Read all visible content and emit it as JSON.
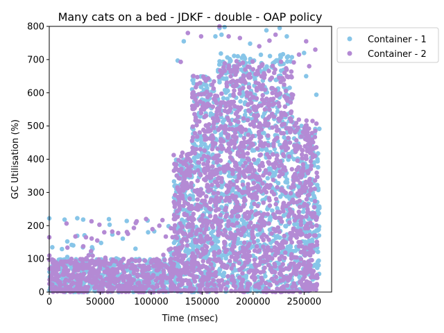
{
  "chart_data": {
    "type": "scatter",
    "title": "Many cats on a bed - JDKF - double -  OAP policy",
    "xlabel": "Time (msec)",
    "ylabel": "GC Utilisation (%)",
    "xlim": [
      0,
      277000
    ],
    "ylim": [
      0,
      800
    ],
    "xticks": [
      0,
      50000,
      100000,
      150000,
      200000,
      250000
    ],
    "xtick_labels": [
      "0",
      "50000",
      "100000",
      "150000",
      "200000",
      "250000"
    ],
    "yticks": [
      0,
      100,
      200,
      300,
      400,
      500,
      600,
      700,
      800
    ],
    "ytick_labels": [
      "0",
      "100",
      "200",
      "300",
      "400",
      "500",
      "600",
      "700",
      "800"
    ],
    "grid": false,
    "legend_position": "outside-top-right",
    "series": [
      {
        "name": "Container - 1",
        "color": "#87c5e8",
        "density": [
          {
            "x_range": [
              0,
              122000
            ],
            "y_range": [
              0,
              100
            ],
            "n": 450
          },
          {
            "x_range": [
              0,
              122000
            ],
            "y_range": [
              100,
              225
            ],
            "n": 22
          },
          {
            "x_range": [
              122000,
              140000
            ],
            "y_range": [
              0,
              400
            ],
            "n": 180
          },
          {
            "x_range": [
              140000,
              165000
            ],
            "y_range": [
              0,
              650
            ],
            "n": 300
          },
          {
            "x_range": [
              165000,
              240000
            ],
            "y_range": [
              0,
              720
            ],
            "n": 850
          },
          {
            "x_range": [
              240000,
              265000
            ],
            "y_range": [
              0,
              500
            ],
            "n": 240
          }
        ],
        "points": [
          {
            "x": 0,
            "y": 222
          },
          {
            "x": 3000,
            "y": 135
          },
          {
            "x": 22000,
            "y": 142
          },
          {
            "x": 33000,
            "y": 135
          },
          {
            "x": 42000,
            "y": 135
          },
          {
            "x": 76000,
            "y": 214
          },
          {
            "x": 97000,
            "y": 180
          },
          {
            "x": 103000,
            "y": 183
          },
          {
            "x": 126000,
            "y": 697
          },
          {
            "x": 132000,
            "y": 755
          },
          {
            "x": 163000,
            "y": 770
          },
          {
            "x": 167000,
            "y": 795
          },
          {
            "x": 169000,
            "y": 775
          },
          {
            "x": 172000,
            "y": 798
          },
          {
            "x": 189000,
            "y": 705
          },
          {
            "x": 197000,
            "y": 748
          },
          {
            "x": 213000,
            "y": 788
          },
          {
            "x": 226000,
            "y": 795
          },
          {
            "x": 233000,
            "y": 770
          },
          {
            "x": 250000,
            "y": 720
          },
          {
            "x": 252000,
            "y": 650
          },
          {
            "x": 262000,
            "y": 594
          },
          {
            "x": 265000,
            "y": 253
          }
        ]
      },
      {
        "name": "Container - 2",
        "color": "#b48ad4",
        "density": [
          {
            "x_range": [
              0,
              122000
            ],
            "y_range": [
              0,
              100
            ],
            "n": 480
          },
          {
            "x_range": [
              0,
              122000
            ],
            "y_range": [
              100,
              220
            ],
            "n": 28
          },
          {
            "x_range": [
              122000,
              140000
            ],
            "y_range": [
              0,
              420
            ],
            "n": 200
          },
          {
            "x_range": [
              140000,
              165000
            ],
            "y_range": [
              0,
              660
            ],
            "n": 320
          },
          {
            "x_range": [
              165000,
              240000
            ],
            "y_range": [
              0,
              700
            ],
            "n": 900
          },
          {
            "x_range": [
              240000,
              263000
            ],
            "y_range": [
              0,
              520
            ],
            "n": 260
          }
        ],
        "points": [
          {
            "x": 0,
            "y": 165
          },
          {
            "x": 36000,
            "y": 165
          },
          {
            "x": 54000,
            "y": 180
          },
          {
            "x": 83000,
            "y": 193
          },
          {
            "x": 95000,
            "y": 220
          },
          {
            "x": 108000,
            "y": 200
          },
          {
            "x": 129000,
            "y": 693
          },
          {
            "x": 136000,
            "y": 780
          },
          {
            "x": 149000,
            "y": 770
          },
          {
            "x": 167000,
            "y": 800
          },
          {
            "x": 176000,
            "y": 770
          },
          {
            "x": 187000,
            "y": 765
          },
          {
            "x": 206000,
            "y": 740
          },
          {
            "x": 216000,
            "y": 757
          },
          {
            "x": 222000,
            "y": 775
          },
          {
            "x": 245000,
            "y": 715
          },
          {
            "x": 252000,
            "y": 755
          },
          {
            "x": 261000,
            "y": 730
          },
          {
            "x": 262000,
            "y": 436
          },
          {
            "x": 255000,
            "y": 680
          }
        ]
      }
    ]
  }
}
